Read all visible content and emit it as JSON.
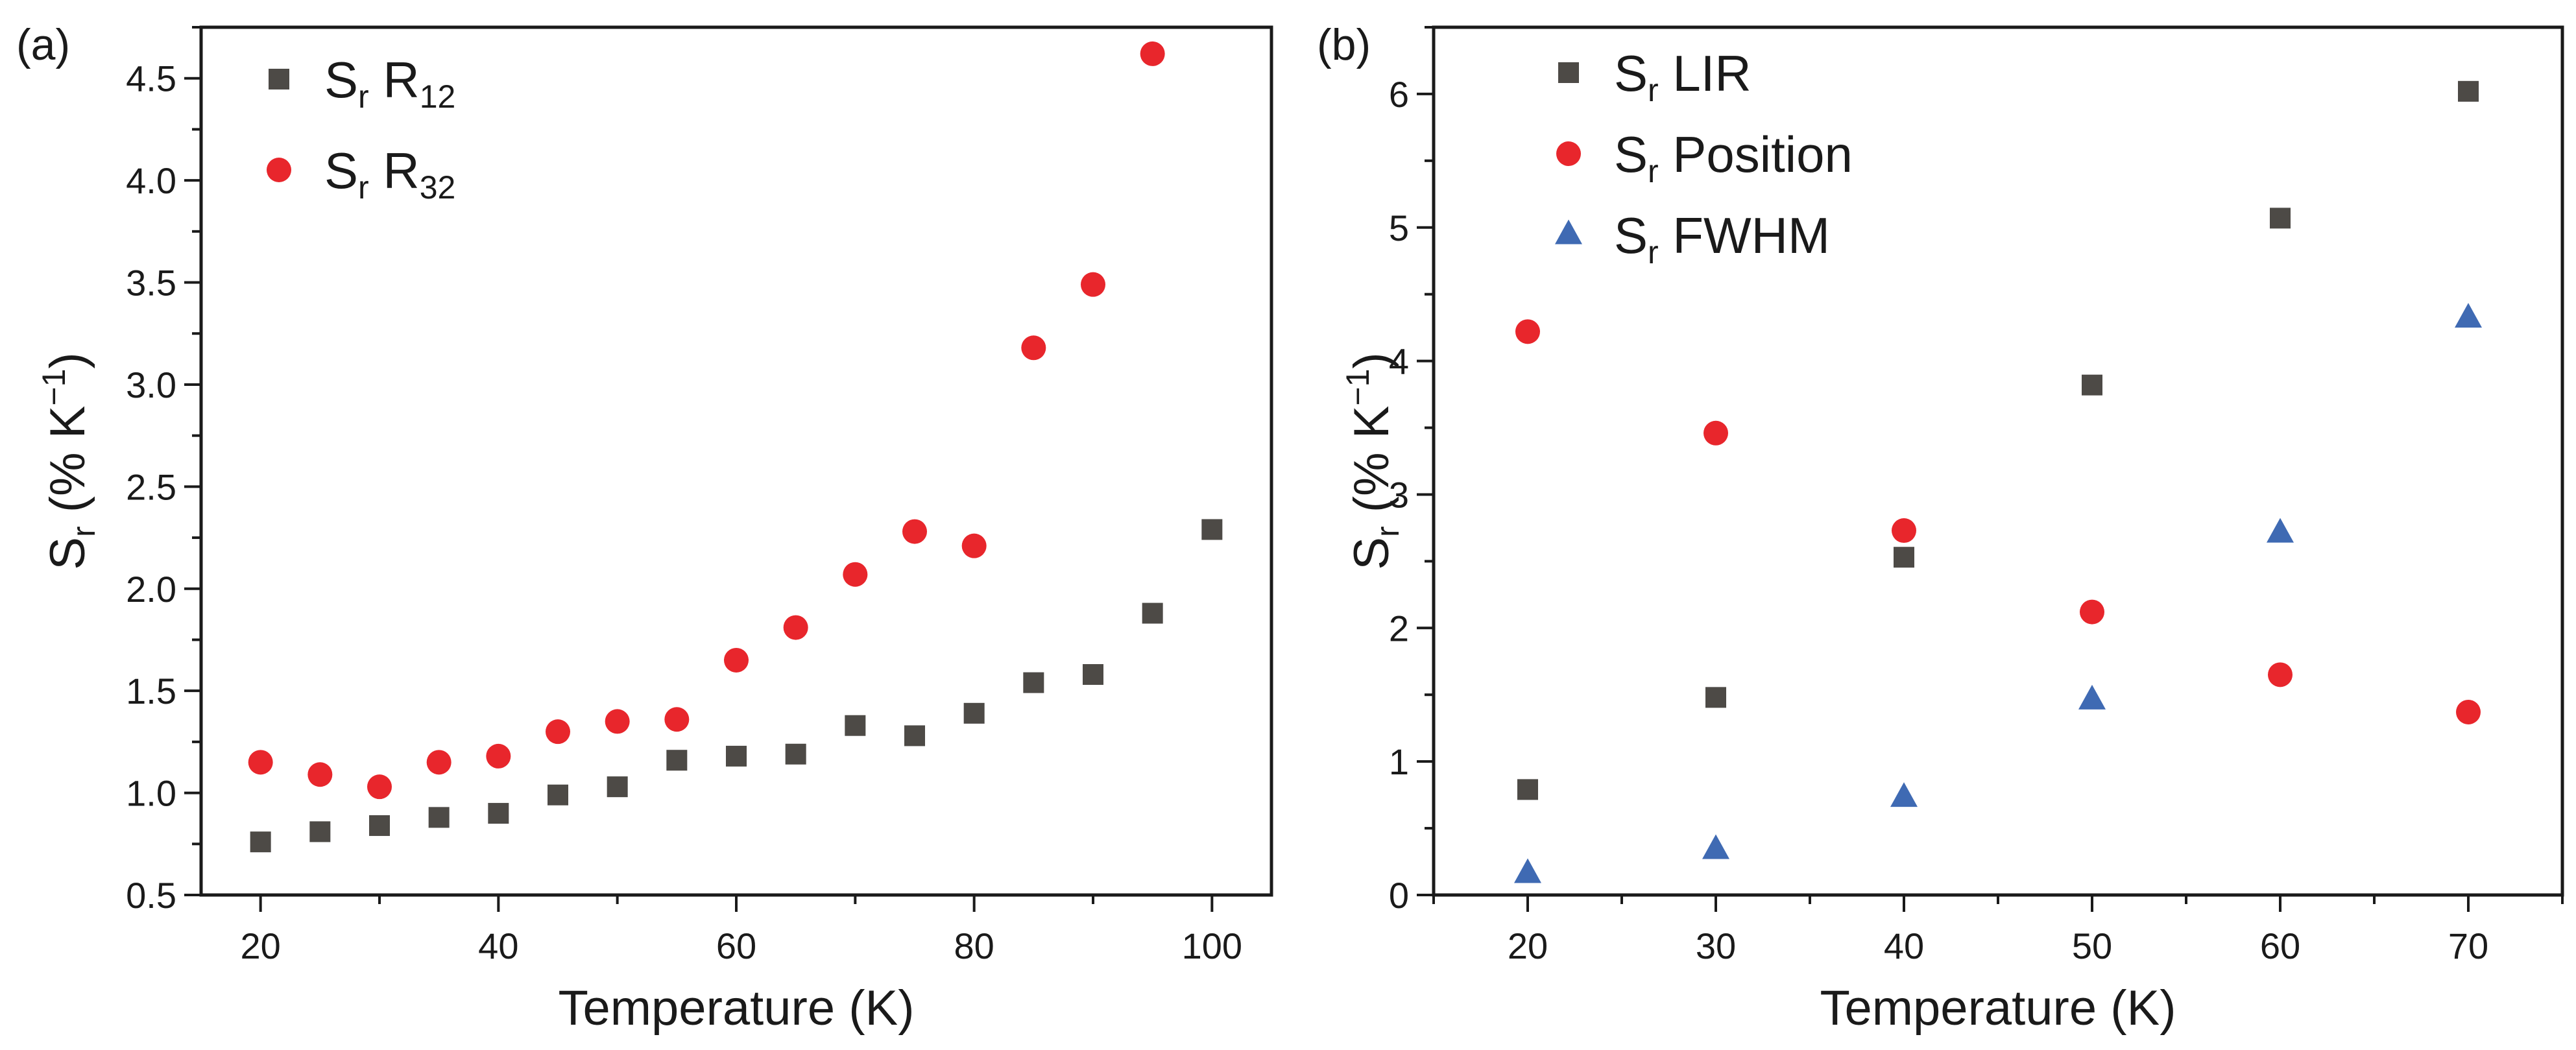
{
  "chart_data": [
    {
      "type": "scatter",
      "panel_label": "(a)",
      "xlabel": "Temperature (K)",
      "ylabel": {
        "main": "S",
        "sub": "r",
        "rest": " (% K",
        "sup": "−1",
        "close": ")"
      },
      "xlim": [
        15,
        105
      ],
      "ylim": [
        0.5,
        4.75
      ],
      "xticks": [
        20,
        40,
        60,
        80,
        100
      ],
      "yticks": [
        "0.5",
        "1.0",
        "1.5",
        "2.0",
        "2.5",
        "3.0",
        "3.5",
        "4.0",
        "4.5"
      ],
      "grid": false,
      "legend_position": "top-left",
      "series": [
        {
          "name": "S_r R_12",
          "label": {
            "main": "S",
            "sub": "r",
            "mid": " R",
            "sub2": "12"
          },
          "marker": "square",
          "color": "#4d4a46",
          "x": [
            20,
            25,
            30,
            35,
            40,
            45,
            50,
            55,
            60,
            65,
            70,
            75,
            80,
            85,
            90,
            95,
            100
          ],
          "y": [
            0.76,
            0.81,
            0.84,
            0.88,
            0.9,
            0.99,
            1.03,
            1.16,
            1.18,
            1.19,
            1.33,
            1.28,
            1.39,
            1.54,
            1.58,
            1.88,
            2.29
          ]
        },
        {
          "name": "S_r R_32",
          "label": {
            "main": "S",
            "sub": "r",
            "mid": " R",
            "sub2": "32"
          },
          "marker": "circle",
          "color": "#e8262c",
          "x": [
            20,
            25,
            30,
            35,
            40,
            45,
            50,
            55,
            60,
            65,
            70,
            75,
            80,
            85,
            90,
            95
          ],
          "y": [
            1.15,
            1.09,
            1.03,
            1.15,
            1.18,
            1.3,
            1.35,
            1.36,
            1.65,
            1.81,
            2.07,
            2.28,
            2.21,
            3.18,
            3.49,
            4.62
          ]
        }
      ]
    },
    {
      "type": "scatter",
      "panel_label": "(b)",
      "xlabel": "Temperature (K)",
      "ylabel": {
        "main": "S",
        "sub": "r",
        "rest": " (% K",
        "sup": "−1",
        "close": ")"
      },
      "xlim": [
        15,
        75
      ],
      "ylim": [
        0,
        6.5
      ],
      "xticks": [
        20,
        30,
        40,
        50,
        60,
        70
      ],
      "yticks": [
        "0",
        "1",
        "2",
        "3",
        "4",
        "5",
        "6"
      ],
      "grid": false,
      "legend_position": "top-left",
      "series": [
        {
          "name": "S_r LIR",
          "label": {
            "main": "S",
            "sub": "r",
            "mid": " LIR",
            "sub2": ""
          },
          "marker": "square",
          "color": "#4d4a46",
          "x": [
            20,
            30,
            40,
            50,
            60,
            70
          ],
          "y": [
            0.79,
            1.48,
            2.53,
            3.82,
            5.07,
            6.02
          ]
        },
        {
          "name": "S_r Position",
          "label": {
            "main": "S",
            "sub": "r",
            "mid": " Position",
            "sub2": ""
          },
          "marker": "circle",
          "color": "#e8262c",
          "x": [
            20,
            30,
            40,
            50,
            60,
            70
          ],
          "y": [
            4.22,
            3.46,
            2.73,
            2.12,
            1.65,
            1.37
          ]
        },
        {
          "name": "S_r FWHM",
          "label": {
            "main": "S",
            "sub": "r",
            "mid": " FWHM",
            "sub2": ""
          },
          "marker": "triangle",
          "color": "#3f6ab3",
          "x": [
            20,
            30,
            40,
            50,
            60,
            70
          ],
          "y": [
            0.16,
            0.34,
            0.73,
            1.46,
            2.71,
            4.32
          ]
        }
      ]
    }
  ]
}
